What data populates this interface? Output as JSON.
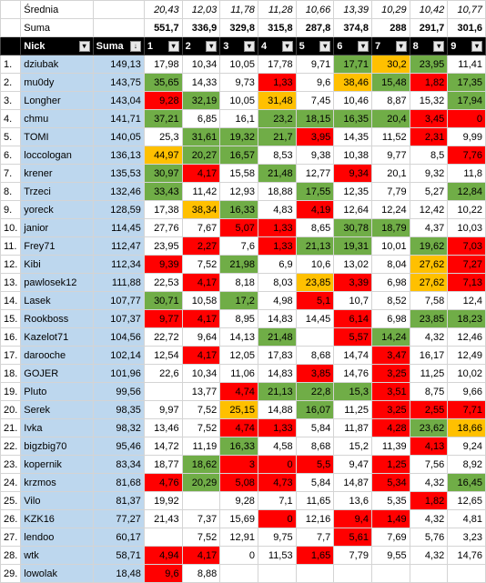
{
  "stats": {
    "avg_label": "Średnia",
    "sum_label": "Suma",
    "averages": [
      "20,43",
      "12,03",
      "11,78",
      "11,28",
      "10,66",
      "13,39",
      "10,29",
      "10,42",
      "10,77"
    ],
    "sums": [
      "551,7",
      "336,9",
      "329,8",
      "315,8",
      "287,8",
      "374,8",
      "288",
      "291,7",
      "301,6"
    ]
  },
  "header": {
    "nick": "Nick",
    "suma": "Suma",
    "rounds": [
      "1",
      "2",
      "3",
      "4",
      "5",
      "6",
      "7",
      "8",
      "9"
    ]
  },
  "colors": {
    "green": "#70ad47",
    "red": "#ff0000",
    "yellow": "#ffc000",
    "nick_bg": "#bdd7ee"
  },
  "rows": [
    {
      "rank": "1.",
      "nick": "dziubak",
      "sum": "149,13",
      "v": [
        "17,98",
        "10,34",
        "10,05",
        "17,78",
        "9,71",
        "17,71",
        "30,2",
        "23,95",
        "11,41"
      ],
      "c": [
        "",
        "",
        "",
        "",
        "",
        "g",
        "y",
        "g",
        ""
      ]
    },
    {
      "rank": "2.",
      "nick": "mu0dy",
      "sum": "143,75",
      "v": [
        "35,65",
        "14,33",
        "9,73",
        "1,33",
        "9,6",
        "38,46",
        "15,48",
        "1,82",
        "17,35"
      ],
      "c": [
        "g",
        "",
        "",
        "r",
        "",
        "y",
        "g",
        "r",
        "g"
      ]
    },
    {
      "rank": "3.",
      "nick": "Longher",
      "sum": "143,04",
      "v": [
        "9,28",
        "32,19",
        "10,05",
        "31,48",
        "7,45",
        "10,46",
        "8,87",
        "15,32",
        "17,94"
      ],
      "c": [
        "r",
        "g",
        "",
        "y",
        "",
        "",
        "",
        "",
        "g"
      ]
    },
    {
      "rank": "4.",
      "nick": "chmu",
      "sum": "141,71",
      "v": [
        "37,21",
        "6,85",
        "16,1",
        "23,2",
        "18,15",
        "16,35",
        "20,4",
        "3,45",
        "0"
      ],
      "c": [
        "g",
        "",
        "",
        "g",
        "g",
        "g",
        "g",
        "r",
        "r"
      ]
    },
    {
      "rank": "5.",
      "nick": "TOMI",
      "sum": "140,05",
      "v": [
        "25,3",
        "31,61",
        "19,32",
        "21,7",
        "3,95",
        "14,35",
        "11,52",
        "2,31",
        "9,99"
      ],
      "c": [
        "",
        "g",
        "g",
        "g",
        "r",
        "",
        "",
        "r",
        ""
      ]
    },
    {
      "rank": "6.",
      "nick": "loccologan",
      "sum": "136,13",
      "v": [
        "44,97",
        "20,27",
        "16,57",
        "8,53",
        "9,38",
        "10,38",
        "9,77",
        "8,5",
        "7,76"
      ],
      "c": [
        "y",
        "g",
        "g",
        "",
        "",
        "",
        "",
        "",
        "r"
      ]
    },
    {
      "rank": "7.",
      "nick": "krener",
      "sum": "135,53",
      "v": [
        "30,97",
        "4,17",
        "15,58",
        "21,48",
        "12,77",
        "9,34",
        "20,1",
        "9,32",
        "11,8"
      ],
      "c": [
        "g",
        "r",
        "",
        "g",
        "",
        "r",
        "",
        "",
        ""
      ]
    },
    {
      "rank": "8.",
      "nick": "Trzeci",
      "sum": "132,46",
      "v": [
        "33,43",
        "11,42",
        "12,93",
        "18,88",
        "17,55",
        "12,35",
        "7,79",
        "5,27",
        "12,84"
      ],
      "c": [
        "g",
        "",
        "",
        "",
        "g",
        "",
        "",
        "",
        "g"
      ]
    },
    {
      "rank": "9.",
      "nick": "yoreck",
      "sum": "128,59",
      "v": [
        "17,38",
        "38,34",
        "16,33",
        "4,83",
        "4,19",
        "12,64",
        "12,24",
        "12,42",
        "10,22"
      ],
      "c": [
        "",
        "y",
        "g",
        "",
        "r",
        "",
        "",
        "",
        ""
      ]
    },
    {
      "rank": "10.",
      "nick": "janior",
      "sum": "114,45",
      "v": [
        "27,76",
        "7,67",
        "5,07",
        "1,33",
        "8,65",
        "30,78",
        "18,79",
        "4,37",
        "10,03"
      ],
      "c": [
        "",
        "",
        "r",
        "r",
        "",
        "g",
        "g",
        "",
        ""
      ]
    },
    {
      "rank": "11.",
      "nick": "Frey71",
      "sum": "112,47",
      "v": [
        "23,95",
        "2,27",
        "7,6",
        "1,33",
        "21,13",
        "19,31",
        "10,01",
        "19,62",
        "7,03"
      ],
      "c": [
        "",
        "r",
        "",
        "r",
        "g",
        "g",
        "",
        "g",
        "r"
      ]
    },
    {
      "rank": "12.",
      "nick": "Kibi",
      "sum": "112,34",
      "v": [
        "9,39",
        "7,52",
        "21,98",
        "6,9",
        "10,6",
        "13,02",
        "8,04",
        "27,62",
        "7,27"
      ],
      "c": [
        "r",
        "",
        "g",
        "",
        "",
        "",
        "",
        "y",
        "r"
      ]
    },
    {
      "rank": "13.",
      "nick": "pawlosek12",
      "sum": "111,88",
      "v": [
        "22,53",
        "4,17",
        "8,18",
        "8,03",
        "23,85",
        "3,39",
        "6,98",
        "27,62",
        "7,13"
      ],
      "c": [
        "",
        "r",
        "",
        "",
        "y",
        "r",
        "",
        "y",
        "r"
      ]
    },
    {
      "rank": "14.",
      "nick": "Lasek",
      "sum": "107,77",
      "v": [
        "30,71",
        "10,58",
        "17,2",
        "4,98",
        "5,1",
        "10,7",
        "8,52",
        "7,58",
        "12,4"
      ],
      "c": [
        "g",
        "",
        "g",
        "",
        "r",
        "",
        "",
        "",
        ""
      ]
    },
    {
      "rank": "15.",
      "nick": "Rookboss",
      "sum": "107,37",
      "v": [
        "9,77",
        "4,17",
        "8,95",
        "14,83",
        "14,45",
        "6,14",
        "6,98",
        "23,85",
        "18,23"
      ],
      "c": [
        "r",
        "r",
        "",
        "",
        "",
        "r",
        "",
        "g",
        "g"
      ]
    },
    {
      "rank": "16.",
      "nick": "Kazelot71",
      "sum": "104,56",
      "v": [
        "22,72",
        "9,64",
        "14,13",
        "21,48",
        "",
        "5,57",
        "14,24",
        "4,32",
        "12,46"
      ],
      "c": [
        "",
        "",
        "",
        "g",
        "",
        "r",
        "g",
        "",
        ""
      ]
    },
    {
      "rank": "17.",
      "nick": "darooche",
      "sum": "102,14",
      "v": [
        "12,54",
        "4,17",
        "12,05",
        "17,83",
        "8,68",
        "14,74",
        "3,47",
        "16,17",
        "12,49"
      ],
      "c": [
        "",
        "r",
        "",
        "",
        "",
        "",
        "r",
        "",
        ""
      ]
    },
    {
      "rank": "18.",
      "nick": "GOJER",
      "sum": "101,96",
      "v": [
        "22,6",
        "10,34",
        "11,06",
        "14,83",
        "3,85",
        "14,76",
        "3,25",
        "11,25",
        "10,02"
      ],
      "c": [
        "",
        "",
        "",
        "",
        "r",
        "",
        "r",
        "",
        ""
      ]
    },
    {
      "rank": "19.",
      "nick": "Pluto",
      "sum": "99,56",
      "v": [
        "",
        "13,77",
        "4,74",
        "21,13",
        "22,8",
        "15,3",
        "3,51",
        "8,75",
        "9,66"
      ],
      "c": [
        "",
        "",
        "r",
        "g",
        "g",
        "g",
        "r",
        "",
        ""
      ]
    },
    {
      "rank": "20.",
      "nick": "Serek",
      "sum": "98,35",
      "v": [
        "9,97",
        "7,52",
        "25,15",
        "14,88",
        "16,07",
        "11,25",
        "3,25",
        "2,55",
        "7,71"
      ],
      "c": [
        "",
        "",
        "y",
        "",
        "g",
        "",
        "r",
        "r",
        "r"
      ]
    },
    {
      "rank": "21.",
      "nick": "Ivka",
      "sum": "98,32",
      "v": [
        "13,46",
        "7,52",
        "4,74",
        "1,33",
        "5,84",
        "11,87",
        "4,28",
        "23,62",
        "18,66"
      ],
      "c": [
        "",
        "",
        "r",
        "r",
        "",
        "",
        "r",
        "g",
        "y"
      ]
    },
    {
      "rank": "22.",
      "nick": "bigzbig70",
      "sum": "95,46",
      "v": [
        "14,72",
        "11,19",
        "16,33",
        "4,58",
        "8,68",
        "15,2",
        "11,39",
        "4,13",
        "9,24"
      ],
      "c": [
        "",
        "",
        "g",
        "",
        "",
        "",
        "",
        "r",
        ""
      ]
    },
    {
      "rank": "23.",
      "nick": "kopernik",
      "sum": "83,34",
      "v": [
        "18,77",
        "18,62",
        "3",
        "0",
        "5,5",
        "9,47",
        "1,25",
        "7,56",
        "8,92"
      ],
      "c": [
        "",
        "g",
        "r",
        "r",
        "r",
        "",
        "r",
        "",
        ""
      ]
    },
    {
      "rank": "24.",
      "nick": "krzmos",
      "sum": "81,68",
      "v": [
        "4,76",
        "20,29",
        "5,08",
        "4,73",
        "5,84",
        "14,87",
        "5,34",
        "4,32",
        "16,45"
      ],
      "c": [
        "r",
        "g",
        "r",
        "r",
        "",
        "",
        "r",
        "",
        "g"
      ]
    },
    {
      "rank": "25.",
      "nick": "Vilo",
      "sum": "81,37",
      "v": [
        "19,92",
        "",
        "9,28",
        "7,1",
        "11,65",
        "13,6",
        "5,35",
        "1,82",
        "12,65"
      ],
      "c": [
        "",
        "",
        "",
        "",
        "",
        "",
        "",
        "r",
        ""
      ]
    },
    {
      "rank": "26.",
      "nick": "KZK16",
      "sum": "77,27",
      "v": [
        "21,43",
        "7,37",
        "15,69",
        "0",
        "12,16",
        "9,4",
        "1,49",
        "4,32",
        "4,81"
      ],
      "c": [
        "",
        "",
        "",
        "r",
        "",
        "r",
        "r",
        "",
        ""
      ]
    },
    {
      "rank": "27.",
      "nick": "lendoo",
      "sum": "60,17",
      "v": [
        "",
        "7,52",
        "12,91",
        "9,75",
        "7,7",
        "5,61",
        "7,69",
        "5,76",
        "3,23"
      ],
      "c": [
        "",
        "",
        "",
        "",
        "",
        "r",
        "",
        "",
        ""
      ]
    },
    {
      "rank": "28.",
      "nick": "wtk",
      "sum": "58,71",
      "v": [
        "4,94",
        "4,17",
        "0",
        "11,53",
        "1,65",
        "7,79",
        "9,55",
        "4,32",
        "14,76"
      ],
      "c": [
        "r",
        "r",
        "",
        "",
        "r",
        "",
        "",
        "",
        ""
      ]
    },
    {
      "rank": "29.",
      "nick": "lowolak",
      "sum": "18,48",
      "v": [
        "9,6",
        "8,88",
        "",
        "",
        "",
        "",
        "",
        "",
        ""
      ],
      "c": [
        "r",
        "",
        "",
        "",
        "",
        "",
        "",
        "",
        ""
      ]
    }
  ]
}
